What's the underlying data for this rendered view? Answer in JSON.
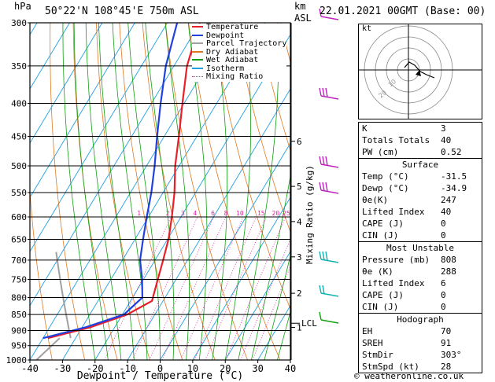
{
  "header": {
    "hpa_label": "hPa",
    "location": "50°22'N  108°45'E  750m  ASL",
    "km_label": "km",
    "asl_label": "ASL",
    "datetime": "22.01.2021  00GMT  (Base: 00)"
  },
  "legend": [
    "Temperature",
    "Dewpoint",
    "Parcel Trajectory",
    "Dry Adiabat",
    "Wet Adiabat",
    "Isotherm",
    "Mixing Ratio"
  ],
  "colors": {
    "temperature": "#e8202a",
    "dewpoint": "#2040e0",
    "parcel": "#a0a0a0",
    "dry_adiabat": "#e07820",
    "wet_adiabat": "#10a010",
    "isotherm": "#20a0e0",
    "mixing_ratio": "#e020a0",
    "wind": "#c020c0"
  },
  "chart_data": {
    "type": "line",
    "subtype": "skew-T log-P",
    "xlabel": "Dewpoint / Temperature (°C)",
    "ylabel": "hPa",
    "right_axis_label": "Mixing Ratio (g/kg)",
    "xlim": [
      -40,
      40
    ],
    "ylim": [
      1000,
      300
    ],
    "x_ticks": [
      -40,
      -30,
      -20,
      -10,
      0,
      10,
      20,
      30,
      40
    ],
    "pressure_levels": [
      300,
      350,
      400,
      450,
      500,
      550,
      600,
      650,
      700,
      750,
      800,
      850,
      900,
      950,
      1000
    ],
    "km_ticks": [
      {
        "label": "6",
        "p": 458
      },
      {
        "label": "5",
        "p": 538
      },
      {
        "label": "4",
        "p": 610
      },
      {
        "label": "3",
        "p": 692
      },
      {
        "label": "2",
        "p": 788
      },
      {
        "label": "1",
        "p": 890
      }
    ],
    "lcl": {
      "label": "LCL",
      "p": 877
    },
    "mixing_ratio_labels": [
      {
        "label": "1",
        "x": -6.5
      },
      {
        "label": "2",
        "x": 2.3
      },
      {
        "label": "3",
        "x": 7.0
      },
      {
        "label": "4",
        "x": 10.7
      },
      {
        "label": "6",
        "x": 16.2
      },
      {
        "label": "8",
        "x": 20.2
      },
      {
        "label": "10",
        "x": 24.5
      },
      {
        "label": "15",
        "x": 31.0
      },
      {
        "label": "20",
        "x": 35.5
      },
      {
        "label": "25",
        "x": 38.8
      }
    ],
    "series": [
      {
        "name": "Temperature",
        "points": [
          [
            300,
            -50
          ],
          [
            350,
            -46
          ],
          [
            400,
            -40.5
          ],
          [
            450,
            -35.5
          ],
          [
            500,
            -31.2
          ],
          [
            550,
            -26.5
          ],
          [
            600,
            -22.8
          ],
          [
            650,
            -19.7
          ],
          [
            700,
            -17.5
          ],
          [
            750,
            -15.6
          ],
          [
            810,
            -13.4
          ],
          [
            850,
            -18.5
          ],
          [
            890,
            -27.5
          ],
          [
            925,
            -38.5
          ]
        ]
      },
      {
        "name": "Dewpoint",
        "points": [
          [
            300,
            -57
          ],
          [
            350,
            -52.5
          ],
          [
            400,
            -47.2
          ],
          [
            450,
            -42.2
          ],
          [
            500,
            -37.5
          ],
          [
            550,
            -33.6
          ],
          [
            600,
            -30.5
          ],
          [
            650,
            -27.5
          ],
          [
            700,
            -24.6
          ],
          [
            750,
            -20.4
          ],
          [
            800,
            -17.0
          ],
          [
            850,
            -19.5
          ],
          [
            890,
            -29.0
          ],
          [
            925,
            -40.0
          ]
        ]
      }
    ]
  },
  "hodograph": {
    "label": "kt",
    "speed_rings_labels": [
      "10",
      "20"
    ]
  },
  "indices": {
    "k_label": "K",
    "k": "3",
    "tt_label": "Totals Totals",
    "tt": "40",
    "pw_label": "PW (cm)",
    "pw": "0.52"
  },
  "surface": {
    "title": "Surface",
    "rows": [
      {
        "label": "Temp (°C)",
        "value": "-31.5"
      },
      {
        "label": "Dewp (°C)",
        "value": "-34.9"
      },
      {
        "label": "θe(K)",
        "value": "247"
      },
      {
        "label": "Lifted Index",
        "value": "40"
      },
      {
        "label": "CAPE (J)",
        "value": "0"
      },
      {
        "label": "CIN (J)",
        "value": "0"
      }
    ]
  },
  "unstable": {
    "title": "Most Unstable",
    "rows": [
      {
        "label": "Pressure (mb)",
        "value": "808"
      },
      {
        "label": "θe (K)",
        "value": "288"
      },
      {
        "label": "Lifted Index",
        "value": "6"
      },
      {
        "label": "CAPE (J)",
        "value": "0"
      },
      {
        "label": "CIN (J)",
        "value": "0"
      }
    ]
  },
  "hodo_table": {
    "title": "Hodograph",
    "rows": [
      {
        "label": "EH",
        "value": "70"
      },
      {
        "label": "SREH",
        "value": "91"
      },
      {
        "label": "StmDir",
        "value": "303°"
      },
      {
        "label": "StmSpd (kt)",
        "value": "28"
      }
    ]
  },
  "copyright": "© weatheronline.co.uk"
}
